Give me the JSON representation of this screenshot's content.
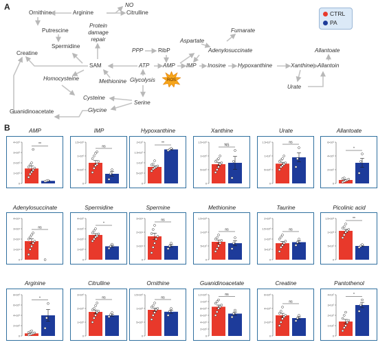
{
  "panel_a_label": "A",
  "panel_b_label": "B",
  "legend": {
    "ctrl_label": "CTRL",
    "pa_label": "PA",
    "ctrl_color": "#e8392b",
    "pa_color": "#1d3b9a"
  },
  "pathway": {
    "nodes": {
      "ornithine": "Ornithine",
      "arginine": "Arginine",
      "no": "NO",
      "citrulline": "Citrulline",
      "putrescine": "Putrescine",
      "protein_damage": "Protein damage repair",
      "spermidine": "Spermidine",
      "creatine": "Creatine",
      "sam": "SAM",
      "homocysteine": "Homocysteine",
      "methionine": "Methionine",
      "glycolysis": "Glycolysis",
      "ppp": "PPP",
      "ribp": "RibP",
      "atp": "ATP",
      "amp": "AMP",
      "imp": "IMP",
      "ros": "ROS",
      "aspartate": "Aspartate",
      "fumarate": "Fumarate",
      "adenylosuccinate": "Adenylosuccinate",
      "inosine": "Inosine",
      "hypoxanthine": "Hypoxanthine",
      "xanthine": "Xanthine",
      "urate": "Urate",
      "allantoate": "Allantoate",
      "allantoin": "Allantoin",
      "cysteine": "Cysteine",
      "glycine": "Glycine",
      "serine": "Serine",
      "guanidinoacetate": "Guanidinoacetate"
    }
  },
  "chart_data": [
    {
      "type": "bar",
      "title": "AMP",
      "categories": [
        "CTRL",
        "PA"
      ],
      "values": [
        1.45,
        0.25
      ],
      "ylim": [
        0,
        4
      ],
      "yticks": [
        0,
        1,
        2,
        3,
        4
      ],
      "tick_labels": [
        "0",
        "1×10⁵",
        "2×10⁵",
        "3×10⁵",
        "4×10⁵"
      ],
      "significance": "**",
      "ctrl_points": [
        0.6,
        0.9,
        1.1,
        1.3,
        1.5,
        1.6,
        1.8,
        2.0,
        3.3
      ],
      "pa_points": [
        0.2,
        0.25,
        0.3
      ]
    },
    {
      "type": "bar",
      "title": "IMP",
      "categories": [
        "CTRL",
        "PA"
      ],
      "values": [
        0.75,
        0.35
      ],
      "ylim": [
        0,
        1.5
      ],
      "yticks": [
        0,
        0.5,
        1,
        1.5
      ],
      "tick_labels": [
        "0",
        "5×10⁵",
        "1×10⁶",
        "1.5×10⁶"
      ],
      "significance": "ns",
      "ctrl_points": [
        0.4,
        0.55,
        0.65,
        0.7,
        0.8,
        0.9,
        1.0,
        1.1,
        1.15
      ],
      "pa_points": [
        0.15,
        0.35,
        0.5
      ]
    },
    {
      "type": "bar",
      "title": "Hypoxanthine",
      "categories": [
        "CTRL",
        "PA"
      ],
      "values": [
        0.8,
        1.65
      ],
      "ylim": [
        0,
        2
      ],
      "yticks": [
        0,
        0.5,
        1,
        1.5,
        2
      ],
      "tick_labels": [
        "0",
        "5×10⁶",
        "1×10⁷",
        "1.5×10⁷",
        "2×10⁷"
      ],
      "significance": "**",
      "ctrl_points": [
        0.6,
        0.7,
        0.75,
        0.8,
        0.85,
        0.9,
        0.95,
        1.1
      ],
      "pa_points": [
        1.6,
        1.65,
        1.7
      ]
    },
    {
      "type": "bar",
      "title": "Xanthine",
      "categories": [
        "CTRL",
        "PA"
      ],
      "values": [
        0.7,
        0.75
      ],
      "ylim": [
        0,
        1.5
      ],
      "yticks": [
        0,
        0.5,
        1,
        1.5
      ],
      "tick_labels": [
        "0",
        "5×10⁵",
        "1×10⁶",
        "1.5×10⁶"
      ],
      "significance": "NS",
      "ctrl_points": [
        0.4,
        0.5,
        0.6,
        0.7,
        0.75,
        0.8,
        0.85,
        0.9,
        1.0
      ],
      "pa_points": [
        0.2,
        0.8,
        1.2
      ]
    },
    {
      "type": "bar",
      "title": "Urate",
      "categories": [
        "CTRL",
        "PA"
      ],
      "values": [
        0.72,
        0.95
      ],
      "ylim": [
        0,
        1.5
      ],
      "yticks": [
        0,
        0.5,
        1,
        1.5
      ],
      "tick_labels": [
        "0",
        "5×10⁶",
        "1×10⁷",
        "1.5×10⁷"
      ],
      "significance": "ns",
      "ctrl_points": [
        0.5,
        0.6,
        0.65,
        0.7,
        0.75,
        0.8,
        0.85,
        0.9,
        1.0
      ],
      "pa_points": [
        0.6,
        0.9,
        1.3
      ]
    },
    {
      "type": "bar",
      "title": "Allantoate",
      "categories": [
        "CTRL",
        "PA"
      ],
      "values": [
        0.5,
        3.0
      ],
      "ylim": [
        0,
        6
      ],
      "yticks": [
        0,
        2,
        4,
        6
      ],
      "tick_labels": [
        "0",
        "2×10⁵",
        "4×10⁵",
        "6×10⁵"
      ],
      "significance": "*",
      "ctrl_points": [
        0.2,
        0.3,
        0.4,
        0.5,
        0.6,
        0.7,
        0.8
      ],
      "pa_points": [
        1.5,
        3.2,
        4.3
      ]
    },
    {
      "type": "bar",
      "title": "Adenylosuccinate",
      "categories": [
        "CTRL",
        "PA"
      ],
      "values": [
        1.8,
        0.0
      ],
      "ylim": [
        0,
        4
      ],
      "yticks": [
        0,
        1,
        2,
        3,
        4
      ],
      "tick_labels": [
        "0",
        "1×10⁴",
        "2×10⁴",
        "3×10⁴",
        "4×10⁴"
      ],
      "significance": "ns",
      "ctrl_points": [
        0.5,
        1.0,
        1.3,
        1.6,
        1.8,
        2.0,
        2.2,
        2.4,
        2.6
      ],
      "pa_points": [
        0.0
      ]
    },
    {
      "type": "bar",
      "title": "Spermidine",
      "categories": [
        "CTRL",
        "PA"
      ],
      "values": [
        2.4,
        1.3
      ],
      "ylim": [
        0,
        4
      ],
      "yticks": [
        0,
        1,
        2,
        3,
        4
      ],
      "tick_labels": [
        "0",
        "1×10⁵",
        "2×10⁵",
        "3×10⁵",
        "4×10⁵"
      ],
      "significance": "*",
      "ctrl_points": [
        1.8,
        2.0,
        2.2,
        2.3,
        2.5,
        2.6,
        2.8,
        3.0
      ],
      "pa_points": [
        1.1,
        1.3,
        1.5
      ]
    },
    {
      "type": "bar",
      "title": "Spermine",
      "categories": [
        "CTRL",
        "PA"
      ],
      "values": [
        1.7,
        1.0
      ],
      "ylim": [
        0,
        3
      ],
      "yticks": [
        0,
        1,
        2,
        3
      ],
      "tick_labels": [
        "0",
        "1×10⁴",
        "2×10⁴",
        "3×10⁴"
      ],
      "significance": "ns",
      "ctrl_points": [
        0.5,
        0.9,
        1.2,
        1.5,
        1.7,
        1.9,
        2.2,
        2.5
      ],
      "pa_points": [
        0.8,
        1.0,
        1.2
      ]
    },
    {
      "type": "bar",
      "title": "Methionine",
      "categories": [
        "CTRL",
        "PA"
      ],
      "values": [
        0.65,
        0.6
      ],
      "ylim": [
        0,
        1.5
      ],
      "yticks": [
        0,
        0.5,
        1,
        1.5
      ],
      "tick_labels": [
        "0",
        "5×10⁷",
        "1×10⁸",
        "1.5×10⁸"
      ],
      "significance": "ns",
      "ctrl_points": [
        0.3,
        0.4,
        0.5,
        0.6,
        0.7,
        0.75,
        0.8,
        0.9
      ],
      "pa_points": [
        0.4,
        0.6,
        0.8
      ]
    },
    {
      "type": "bar",
      "title": "Taurine",
      "categories": [
        "CTRL",
        "PA"
      ],
      "values": [
        0.8,
        0.85
      ],
      "ylim": [
        0,
        2
      ],
      "yticks": [
        0,
        0.5,
        1,
        1.5,
        2
      ],
      "tick_labels": [
        "0",
        "5×10⁷",
        "1×10⁸",
        "1.5×10⁸",
        "2×10⁸"
      ],
      "significance": "ns",
      "ctrl_points": [
        0.4,
        0.6,
        0.7,
        0.8,
        0.9,
        1.0,
        1.1,
        1.2
      ],
      "pa_points": [
        0.7,
        0.85,
        1.0
      ]
    },
    {
      "type": "bar",
      "title": "Picolinic acid",
      "categories": [
        "CTRL",
        "PA"
      ],
      "values": [
        1.05,
        0.5
      ],
      "ylim": [
        0,
        1.5
      ],
      "yticks": [
        0,
        0.5,
        1,
        1.5
      ],
      "tick_labels": [
        "0",
        "5×10⁷",
        "1×10⁸",
        "1.5×10⁸"
      ],
      "significance": "**",
      "ctrl_points": [
        0.8,
        0.9,
        1.0,
        1.05,
        1.1,
        1.15,
        1.2,
        1.3
      ],
      "pa_points": [
        0.45,
        0.5,
        0.55
      ]
    },
    {
      "type": "bar",
      "title": "Arginine",
      "categories": [
        "CTRL",
        "PA"
      ],
      "values": [
        0.5,
        4.0
      ],
      "ylim": [
        0,
        8
      ],
      "yticks": [
        0,
        2,
        4,
        6,
        8
      ],
      "tick_labels": [
        "0",
        "2×10⁶",
        "4×10⁶",
        "6×10⁶",
        "8×10⁶"
      ],
      "significance": "*",
      "ctrl_points": [
        0.2,
        0.3,
        0.4,
        0.5,
        0.6,
        0.7,
        0.8,
        1.0
      ],
      "pa_points": [
        1.5,
        3.5,
        6.3
      ]
    },
    {
      "type": "bar",
      "title": "Citrulline",
      "categories": [
        "CTRL",
        "PA"
      ],
      "values": [
        1.75,
        1.5
      ],
      "ylim": [
        0,
        3
      ],
      "yticks": [
        0,
        1,
        2,
        3
      ],
      "tick_labels": [
        "0",
        "1×10⁶",
        "2×10⁶",
        "3×10⁶"
      ],
      "significance": "ns",
      "ctrl_points": [
        1.0,
        1.3,
        1.5,
        1.7,
        1.8,
        1.9,
        2.0,
        2.2,
        2.4
      ],
      "pa_points": [
        1.4,
        1.55,
        1.7
      ]
    },
    {
      "type": "bar",
      "title": "Ornithine",
      "categories": [
        "CTRL",
        "PA"
      ],
      "values": [
        0.95,
        0.88
      ],
      "ylim": [
        0,
        1.5
      ],
      "yticks": [
        0,
        0.5,
        1,
        1.5
      ],
      "tick_labels": [
        "0",
        "5×10⁵",
        "1×10⁶",
        "1.5×10⁶"
      ],
      "significance": "ns",
      "ctrl_points": [
        0.6,
        0.75,
        0.85,
        0.95,
        1.0,
        1.05,
        1.1,
        1.2
      ],
      "pa_points": [
        0.75,
        0.9,
        1.0
      ]
    },
    {
      "type": "bar",
      "title": "Guanidinoacetate",
      "categories": [
        "CTRL",
        "PA"
      ],
      "values": [
        0.85,
        0.65
      ],
      "ylim": [
        0,
        1.2
      ],
      "yticks": [
        0,
        0.2,
        0.4,
        0.6,
        0.8,
        1.0,
        1.2
      ],
      "tick_labels": [
        "0",
        "2×10⁵",
        "4×10⁵",
        "6×10⁵",
        "8×10⁵",
        "1×10⁶",
        "1.2×10⁶"
      ],
      "significance": "ns",
      "ctrl_points": [
        0.6,
        0.7,
        0.8,
        0.85,
        0.9,
        0.95,
        1.0,
        1.05
      ],
      "pa_points": [
        0.55,
        0.65,
        0.75
      ]
    },
    {
      "type": "bar",
      "title": "Creatine",
      "categories": [
        "CTRL",
        "PA"
      ],
      "values": [
        3.0,
        2.6
      ],
      "ylim": [
        0,
        6
      ],
      "yticks": [
        0,
        2,
        4,
        6
      ],
      "tick_labels": [
        "0",
        "2×10⁸",
        "4×10⁸",
        "6×10⁸"
      ],
      "significance": "ns",
      "ctrl_points": [
        1.5,
        2.0,
        2.5,
        2.8,
        3.0,
        3.3,
        3.6,
        4.2
      ],
      "pa_points": [
        2.2,
        2.6,
        3.0
      ]
    },
    {
      "type": "bar",
      "title": "Pantothenol",
      "categories": [
        "CTRL",
        "PA"
      ],
      "values": [
        1.4,
        3.0
      ],
      "ylim": [
        0,
        4
      ],
      "yticks": [
        0,
        1,
        2,
        3,
        4
      ],
      "tick_labels": [
        "0",
        "1×10⁷",
        "2×10⁷",
        "3×10⁷",
        "4×10⁷"
      ],
      "significance": "*",
      "ctrl_points": [
        0.5,
        0.8,
        1.0,
        1.3,
        1.5,
        1.7,
        2.0,
        2.3
      ],
      "pa_points": [
        2.4,
        3.0,
        3.5
      ]
    }
  ]
}
